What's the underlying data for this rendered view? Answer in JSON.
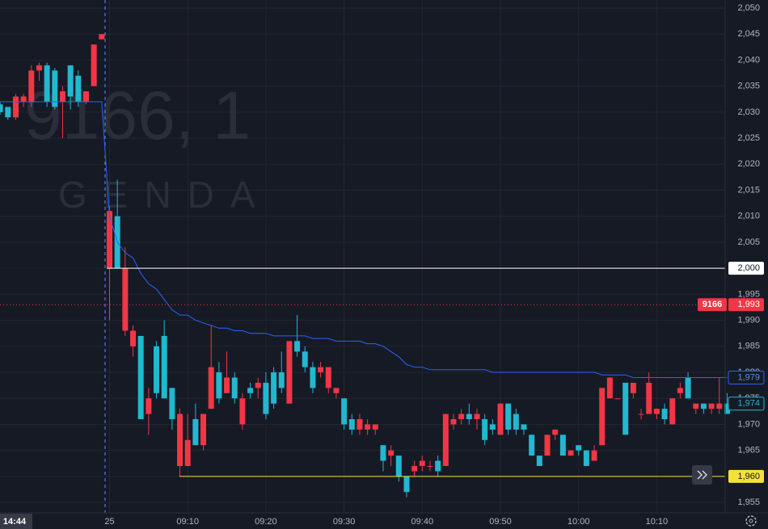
{
  "chart_data": {
    "type": "candlestick",
    "watermark": {
      "title": "9166, 1",
      "subtitle": "GENDA"
    },
    "crosshair_label": "14:44",
    "categories": [
      null,
      null,
      null,
      null,
      null,
      null,
      null,
      null,
      null,
      null,
      null,
      null,
      null,
      null,
      "25",
      null,
      null,
      null,
      null,
      null,
      null,
      null,
      null,
      null,
      "09:10",
      null,
      null,
      null,
      null,
      null,
      null,
      null,
      null,
      null,
      "09:20",
      null,
      null,
      null,
      null,
      null,
      null,
      null,
      null,
      null,
      "09:30",
      null,
      null,
      null,
      null,
      null,
      null,
      null,
      null,
      null,
      "09:40",
      null,
      null,
      null,
      null,
      null,
      null,
      null,
      null,
      null,
      "09:50",
      null,
      null,
      null,
      null,
      null,
      null,
      null,
      null,
      null,
      "10:00",
      null,
      null,
      null,
      null,
      null,
      null,
      null,
      null,
      null,
      "10:10",
      null,
      null,
      null,
      null,
      null,
      null,
      null,
      null,
      null
    ],
    "open": [
      2030,
      2029,
      2033,
      2033,
      2038,
      2039,
      2032,
      2031,
      2034,
      2033,
      2032,
      2034,
      2043,
      2045,
      2011,
      2000,
      2000,
      1988,
      1971,
      1975,
      1976,
      1975,
      1971,
      1972,
      1967,
      1966,
      1972,
      1981,
      1975,
      1979,
      1975,
      1975,
      1976,
      1978,
      1972,
      1974,
      1977,
      1986,
      1984,
      1981,
      1977,
      1981,
      1981,
      1977,
      1970,
      1969,
      1971,
      1970,
      1970,
      1963,
      1965,
      1960,
      1957,
      1962,
      1963,
      1962,
      1961,
      1972,
      1971,
      1972,
      1971,
      1972,
      1967,
      1969,
      1974,
      1969,
      1969,
      1969,
      1964,
      1962,
      1968,
      1969,
      1964,
      1965,
      1965,
      1962,
      1965,
      1977,
      1979,
      1975,
      1968,
      1978,
      1972,
      1978,
      1973,
      1971,
      1975,
      1977,
      1975,
      1974,
      1973,
      1974,
      1974,
      1972
    ],
    "high": [
      2032,
      2031,
      2033.5,
      2033.5,
      2039,
      2039.5,
      2039.5,
      2038.5,
      2035,
      2039,
      2038,
      2034,
      2043,
      2045,
      2012,
      2017,
      2004,
      1989,
      1987,
      1977,
      1986,
      1990,
      1977,
      1973,
      1972,
      1974,
      1972,
      1989,
      1982,
      1984,
      1980,
      1976,
      1978,
      1979,
      1980,
      1981,
      1984,
      1986,
      1991,
      1985,
      1982,
      1982,
      1981,
      1977,
      1975,
      1972,
      1972,
      1971,
      1970,
      1966,
      1966,
      1964,
      1960,
      1963,
      1964,
      1963,
      1964,
      1972,
      1972,
      1973,
      1974,
      1973,
      1972,
      1971,
      1974,
      1974,
      1973,
      1970,
      1968,
      1964,
      1968,
      1969,
      1968,
      1965,
      1966,
      1965,
      1966,
      1977,
      1979,
      1975,
      1978,
      1978,
      1973,
      1980,
      1973,
      1974,
      1975,
      1978,
      1980,
      1974,
      1974,
      1974,
      1979,
      1976
    ],
    "low": [
      2029.5,
      2028.5,
      2028.5,
      2031,
      2031,
      2036,
      2031,
      2030.5,
      2025,
      2030.5,
      2031,
      2031.5,
      2035,
      2044,
      1990,
      2000,
      1987,
      1983,
      1971,
      1968,
      1975,
      1975,
      1969,
      1960,
      1962,
      1966,
      1965,
      1973,
      1974,
      1976,
      1974,
      1969,
      1975,
      1975,
      1971,
      1973,
      1976,
      1974,
      1983,
      1980,
      1976,
      1979,
      1976,
      1975,
      1969,
      1968,
      1968,
      1968,
      1968,
      1961,
      1962,
      1959,
      1956,
      1960,
      1961,
      1961,
      1960,
      1962,
      1969,
      1970,
      1970,
      1969,
      1966,
      1968,
      1968,
      1968,
      1968,
      1968,
      1964,
      1962,
      1964,
      1967,
      1964,
      1964,
      1964,
      1962,
      1963,
      1966,
      1975,
      1975,
      1968,
      1975,
      1971,
      1972,
      1971,
      1970,
      1970,
      1975,
      1975,
      1972,
      1972,
      1972,
      1972,
      1972
    ],
    "close": [
      2031.5,
      2031,
      2029,
      2032,
      2032,
      2038,
      2039,
      2038,
      2032,
      2039,
      2037,
      2032,
      2035,
      2044,
      2000,
      2010,
      1988,
      1985,
      1987,
      1972,
      1985,
      1987,
      1977,
      1962,
      1962,
      1971,
      1966,
      1973,
      1980,
      1976,
      1979,
      1970,
      1977,
      1977,
      1978,
      1980,
      1980,
      1974,
      1986,
      1984,
      1981,
      1980,
      1977,
      1976,
      1975,
      1971,
      1969,
      1969,
      1969,
      1966,
      1964,
      1964,
      1960,
      1961,
      1962,
      1962,
      1963,
      1962,
      1970,
      1971,
      1972,
      1971,
      1971,
      1970,
      1968,
      1974,
      1972,
      1970,
      1968,
      1964,
      1964,
      1968,
      1968,
      1964,
      1966,
      1965,
      1963,
      1966,
      1975,
      1975,
      1978,
      1976,
      1972,
      1972,
      1972,
      1973,
      1970,
      1976,
      1979,
      1973,
      1974,
      1973,
      1973,
      1974
    ],
    "up_color": "#22b8cf",
    "down_color": "#f23645",
    "line": {
      "color": "#2962ff",
      "values": [
        2032,
        2032,
        2032,
        2032,
        2032,
        2032,
        2032,
        2032,
        2032,
        2032,
        2032,
        2032,
        2032,
        2032,
        2010,
        2005,
        2003,
        2002,
        1999,
        1997,
        1996,
        1994,
        1992,
        1991,
        1991,
        1990,
        1989.5,
        1989,
        1988.5,
        1988.5,
        1988,
        1988,
        1987.5,
        1987.5,
        1987.5,
        1987,
        1987,
        1987,
        1987,
        1987,
        1986.5,
        1986.5,
        1986.5,
        1986,
        1986,
        1986,
        1986,
        1985.5,
        1985.5,
        1985,
        1984,
        1983,
        1981.5,
        1981,
        1981,
        1980.5,
        1980.5,
        1980.5,
        1980.5,
        1980.5,
        1980.5,
        1980.5,
        1980.5,
        1980,
        1980,
        1980,
        1980,
        1980,
        1980,
        1980,
        1980,
        1980,
        1980,
        1980,
        1980,
        1980,
        1980,
        1979.5,
        1979.5,
        1979.5,
        1979.5,
        1979,
        1979,
        1979,
        1979,
        1979,
        1979,
        1979,
        1979,
        1979,
        1979,
        1979,
        1979,
        1979
      ]
    },
    "price_lines": [
      {
        "value": 2000,
        "label": "2,000",
        "color": "#ffffff",
        "text_color": "#131722",
        "line": "solid"
      },
      {
        "value": 1993,
        "label": "1,993",
        "symbol": "9166",
        "color": "#f23645",
        "text_color": "#ffffff",
        "line": "dotted"
      },
      {
        "value": 1979,
        "label": "1,979",
        "color": "#2962ff",
        "text_color": "#5b8cff",
        "line": "none",
        "outline": true
      },
      {
        "value": 1974,
        "label": "1,974",
        "color": "#22b8cf",
        "text_color": "#22b8cf",
        "line": "none",
        "outline": true
      },
      {
        "value": 1960,
        "label": "1,960",
        "color": "#f5e13a",
        "text_color": "#131722",
        "line": "solid"
      }
    ],
    "ylim": [
      1953,
      2051.55
    ],
    "yticks": [
      {
        "value": 2050,
        "label": "2,050"
      },
      {
        "value": 2045,
        "label": "2,045"
      },
      {
        "value": 2040,
        "label": "2,040"
      },
      {
        "value": 2035,
        "label": "2,035"
      },
      {
        "value": 2030,
        "label": "2,030"
      },
      {
        "value": 2025,
        "label": "2,025"
      },
      {
        "value": 2020,
        "label": "2,020"
      },
      {
        "value": 2015,
        "label": "2,015"
      },
      {
        "value": 2010,
        "label": "2,010"
      },
      {
        "value": 2005,
        "label": "2,005"
      },
      {
        "value": 2000,
        "label": "2,000"
      },
      {
        "value": 1995,
        "label": "1,995"
      },
      {
        "value": 1990,
        "label": "1,990"
      },
      {
        "value": 1985,
        "label": "1,985"
      },
      {
        "value": 1980,
        "label": "1,980"
      },
      {
        "value": 1975,
        "label": "1,975"
      },
      {
        "value": 1970,
        "label": "1,970"
      },
      {
        "value": 1965,
        "label": "1,965"
      },
      {
        "value": 1960,
        "label": "1,960"
      },
      {
        "value": 1955,
        "label": "1,955"
      }
    ],
    "grid": true
  }
}
